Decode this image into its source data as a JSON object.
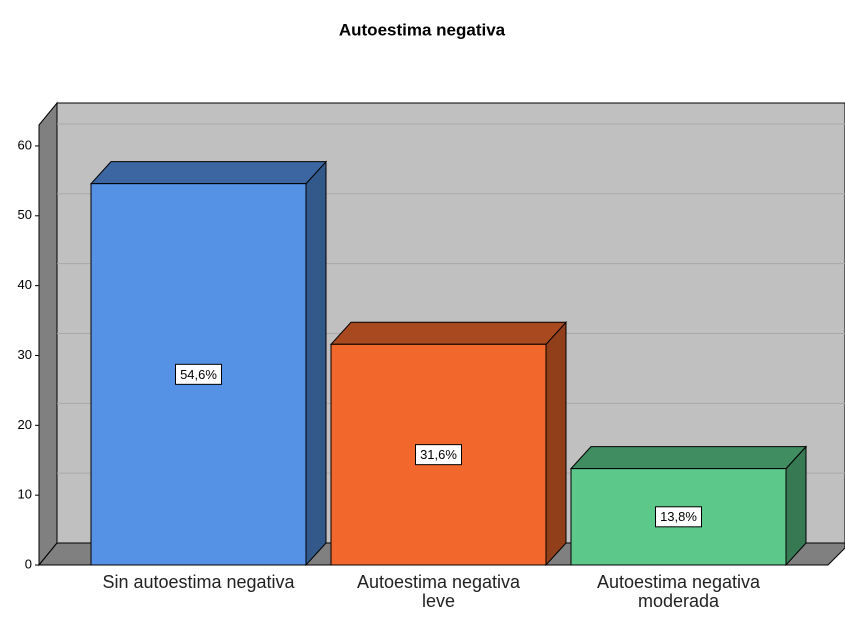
{
  "chart_data": {
    "type": "bar3d",
    "title": "Autoestima negativa",
    "categories": [
      "Sin autoestima negativa",
      "Autoestima negativa leve",
      "Autoestima negativa moderada"
    ],
    "values": [
      54.6,
      31.6,
      13.8
    ],
    "value_labels": [
      "54,6%",
      "31,6%",
      "13,8%"
    ],
    "colors": [
      "#5592e6",
      "#f2682c",
      "#5cc98a"
    ],
    "ylim": [
      0,
      63
    ],
    "yticks": [
      0,
      10,
      20,
      30,
      40,
      50,
      60
    ],
    "grid": true
  }
}
